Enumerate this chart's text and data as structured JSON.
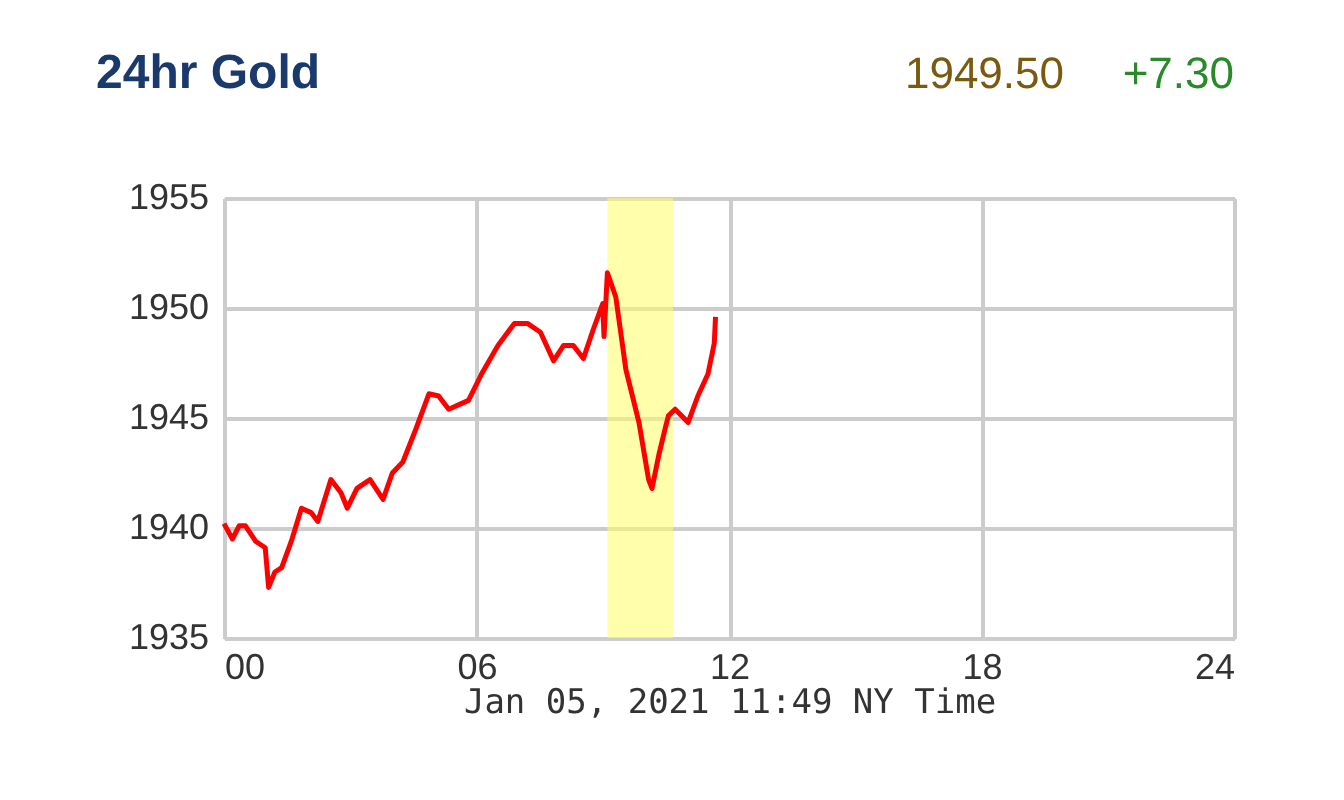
{
  "chart_data": {
    "type": "line",
    "title": "24hr Gold",
    "xlabel": "Jan 05, 2021 11:49 NY Time",
    "annotations": [
      "1949.50",
      "+7.30"
    ],
    "series": [
      {
        "color": "#ff0000",
        "x": [
          0,
          0.2,
          0.36,
          0.51,
          0.75,
          0.98,
          1.06,
          1.21,
          1.37,
          1.6,
          1.84,
          2.07,
          2.23,
          2.54,
          2.78,
          2.93,
          3.16,
          3.47,
          3.78,
          4.0,
          4.25,
          4.56,
          4.87,
          5.1,
          5.34,
          5.81,
          6.12,
          6.51,
          6.9,
          7.21,
          7.52,
          7.83,
          8.07,
          8.3,
          8.54,
          8.77,
          9.0,
          9.03,
          9.11,
          9.31,
          9.55,
          9.86,
          10.09,
          10.17,
          10.33,
          10.48,
          10.56,
          10.72,
          11.03,
          11.26,
          11.5,
          11.65,
          11.68
        ],
        "values": [
          1940.2,
          1939.5,
          1940.1,
          1940.1,
          1939.4,
          1939.1,
          1937.3,
          1938.0,
          1938.2,
          1939.4,
          1940.9,
          1940.7,
          1940.3,
          1942.2,
          1941.6,
          1940.9,
          1941.8,
          1942.2,
          1941.3,
          1942.5,
          1943.0,
          1944.5,
          1946.1,
          1946.0,
          1945.4,
          1945.8,
          1947.0,
          1948.3,
          1949.3,
          1949.3,
          1948.9,
          1947.6,
          1948.3,
          1948.3,
          1947.7,
          1949.0,
          1950.2,
          1948.7,
          1951.6,
          1950.5,
          1947.2,
          1944.8,
          1942.2,
          1941.8,
          1943.3,
          1944.5,
          1945.1,
          1945.4,
          1944.8,
          1946.0,
          1947.0,
          1948.4,
          1949.6
        ]
      }
    ],
    "bands": [
      {
        "axis": "x",
        "from": 9.11,
        "to": 10.67,
        "color": "#ffff66"
      }
    ],
    "xlim": [
      0,
      24
    ],
    "xticks": [
      {
        "value": 0,
        "label": "00"
      },
      {
        "value": 6,
        "label": "06"
      },
      12,
      18,
      24
    ],
    "ylim": [
      1935,
      1955
    ],
    "yticks": [
      1935,
      1940,
      1945,
      1950,
      1955
    ],
    "grid": true,
    "marker": "none",
    "line_style": "solid"
  }
}
